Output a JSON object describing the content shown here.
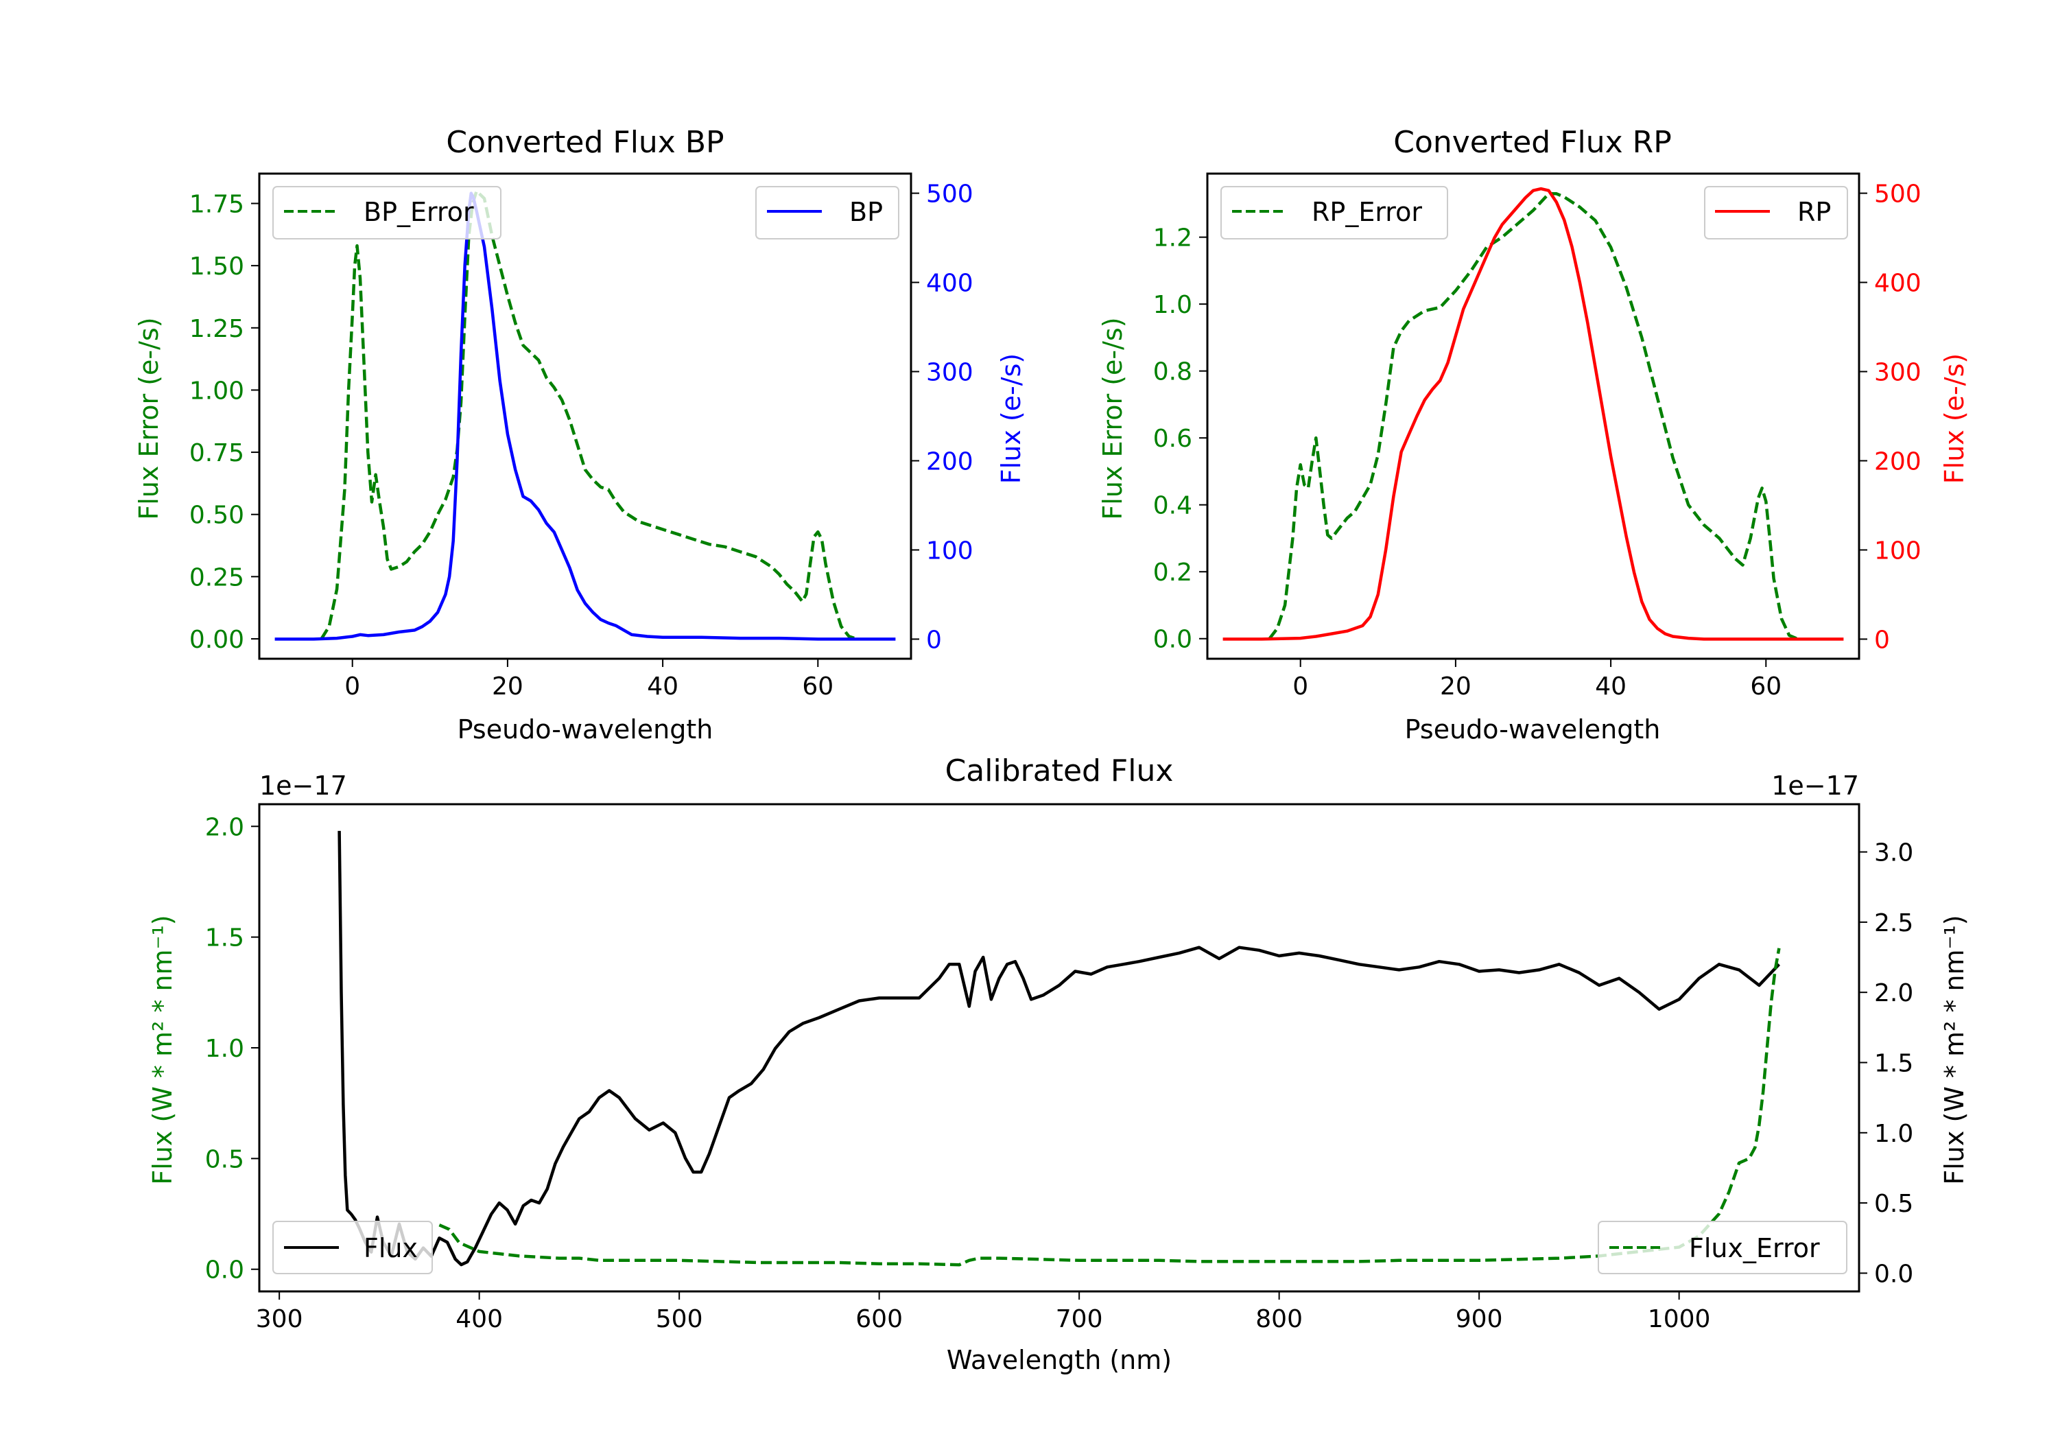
{
  "colors": {
    "green": "#008000",
    "blue": "#0000ff",
    "red": "#ff0000",
    "black": "#000000"
  },
  "chart_data": [
    {
      "id": "bp",
      "type": "line",
      "title": "Converted Flux BP",
      "xlabel": "Pseudo-wavelength",
      "ylabel_left": "Flux Error (e-/s)",
      "ylabel_right": "Flux (e-/s)",
      "xlim": [
        -12,
        72
      ],
      "ylim_left": [
        -0.08,
        1.87
      ],
      "ylim_right": [
        -22,
        522
      ],
      "xticks": [
        0,
        20,
        40,
        60
      ],
      "yticks_left": [
        "0.00",
        "0.25",
        "0.50",
        "0.75",
        "1.00",
        "1.25",
        "1.50",
        "1.75"
      ],
      "yticks_right": [
        "0",
        "100",
        "200",
        "300",
        "400",
        "500"
      ],
      "legend_left": "BP_Error",
      "legend_right": "BP",
      "series": [
        {
          "name": "BP_Error",
          "axis": "left",
          "style": "dashed",
          "color": "#008000",
          "x": [
            -4,
            -3,
            -2,
            -1,
            -0.5,
            0,
            0.3,
            0.6,
            1,
            1.5,
            2,
            2.5,
            3,
            3.5,
            4,
            4.5,
            5,
            6,
            7,
            8,
            9,
            10,
            11,
            12,
            13,
            13.5,
            14,
            14.5,
            15,
            15.5,
            16,
            17,
            18,
            19,
            20,
            21,
            22,
            23,
            24,
            25,
            26,
            27,
            28,
            29,
            30,
            31,
            32,
            33,
            34,
            35,
            36,
            37,
            38,
            40,
            42,
            44,
            46,
            48,
            50,
            52,
            54,
            55,
            56,
            57,
            58,
            58.5,
            59,
            59.5,
            60,
            60.5,
            61,
            62,
            63,
            64,
            65
          ],
          "values": [
            0.0,
            0.05,
            0.2,
            0.6,
            1.0,
            1.3,
            1.5,
            1.58,
            1.45,
            1.1,
            0.75,
            0.55,
            0.66,
            0.55,
            0.45,
            0.32,
            0.28,
            0.29,
            0.31,
            0.35,
            0.38,
            0.43,
            0.5,
            0.56,
            0.65,
            0.76,
            0.95,
            1.3,
            1.62,
            1.75,
            1.8,
            1.77,
            1.62,
            1.5,
            1.38,
            1.27,
            1.18,
            1.15,
            1.12,
            1.05,
            1.01,
            0.96,
            0.88,
            0.78,
            0.68,
            0.64,
            0.61,
            0.6,
            0.55,
            0.51,
            0.49,
            0.47,
            0.46,
            0.44,
            0.42,
            0.4,
            0.38,
            0.37,
            0.35,
            0.33,
            0.29,
            0.26,
            0.22,
            0.19,
            0.15,
            0.18,
            0.3,
            0.41,
            0.43,
            0.4,
            0.3,
            0.15,
            0.05,
            0.01,
            0.0
          ]
        },
        {
          "name": "BP",
          "axis": "right",
          "style": "solid",
          "color": "#0000ff",
          "x": [
            -10,
            -5,
            -2,
            0,
            1,
            2,
            4,
            6,
            8,
            9,
            10,
            11,
            12,
            12.5,
            13,
            13.5,
            14,
            14.5,
            15,
            15.3,
            15.6,
            16,
            17,
            18,
            19,
            20,
            21,
            22,
            23,
            24,
            25,
            26,
            27,
            28,
            29,
            30,
            31,
            32,
            33,
            34,
            35,
            36,
            38,
            40,
            45,
            50,
            55,
            60,
            65,
            70
          ],
          "values": [
            0,
            0,
            1,
            3,
            5,
            4,
            5,
            8,
            10,
            14,
            20,
            30,
            50,
            70,
            110,
            200,
            320,
            420,
            480,
            500,
            495,
            480,
            440,
            370,
            290,
            230,
            190,
            160,
            155,
            145,
            130,
            120,
            100,
            80,
            55,
            40,
            30,
            22,
            18,
            15,
            10,
            5,
            3,
            2,
            2,
            1,
            1,
            0,
            0,
            0
          ]
        }
      ]
    },
    {
      "id": "rp",
      "type": "line",
      "title": "Converted Flux RP",
      "xlabel": "Pseudo-wavelength",
      "ylabel_left": "Flux Error (e-/s)",
      "ylabel_right": "Flux (e-/s)",
      "xlim": [
        -12,
        72
      ],
      "ylim_left": [
        -0.06,
        1.39
      ],
      "ylim_right": [
        -22,
        522
      ],
      "xticks": [
        0,
        20,
        40,
        60
      ],
      "yticks_left": [
        "0.0",
        "0.2",
        "0.4",
        "0.6",
        "0.8",
        "1.0",
        "1.2"
      ],
      "yticks_right": [
        "0",
        "100",
        "200",
        "300",
        "400",
        "500"
      ],
      "legend_left": "RP_Error",
      "legend_right": "RP",
      "series": [
        {
          "name": "RP_Error",
          "axis": "left",
          "style": "dashed",
          "color": "#008000",
          "x": [
            -4,
            -3,
            -2,
            -1,
            -0.5,
            0,
            0.5,
            1,
            1.5,
            2,
            2.5,
            3,
            3.5,
            4,
            5,
            6,
            7,
            8,
            9,
            10,
            11,
            12,
            13,
            14,
            16,
            18,
            20,
            22,
            24,
            26,
            28,
            30,
            32,
            33,
            34,
            36,
            38,
            40,
            42,
            44,
            46,
            48,
            50,
            52,
            54,
            55,
            56,
            57,
            58,
            59,
            59.5,
            60,
            60.5,
            61,
            62,
            63,
            64
          ],
          "values": [
            0.0,
            0.03,
            0.1,
            0.3,
            0.45,
            0.52,
            0.46,
            0.45,
            0.53,
            0.6,
            0.5,
            0.4,
            0.31,
            0.3,
            0.33,
            0.36,
            0.38,
            0.42,
            0.46,
            0.55,
            0.7,
            0.87,
            0.92,
            0.95,
            0.98,
            0.99,
            1.04,
            1.1,
            1.17,
            1.2,
            1.24,
            1.28,
            1.33,
            1.33,
            1.32,
            1.29,
            1.25,
            1.17,
            1.05,
            0.9,
            0.72,
            0.54,
            0.4,
            0.34,
            0.3,
            0.27,
            0.24,
            0.22,
            0.3,
            0.42,
            0.45,
            0.41,
            0.3,
            0.18,
            0.06,
            0.01,
            0.0
          ]
        },
        {
          "name": "RP",
          "axis": "right",
          "style": "solid",
          "color": "#ff0000",
          "x": [
            -10,
            -5,
            0,
            2,
            4,
            6,
            8,
            9,
            10,
            11,
            12,
            13,
            14,
            15,
            16,
            17,
            18,
            19,
            20,
            21,
            22,
            23,
            24,
            25,
            26,
            27,
            28,
            29,
            30,
            31,
            32,
            33,
            34,
            35,
            36,
            37,
            38,
            39,
            40,
            41,
            42,
            43,
            44,
            45,
            46,
            47,
            48,
            50,
            52,
            55,
            60,
            65,
            70
          ],
          "values": [
            0,
            0,
            1,
            3,
            6,
            9,
            15,
            25,
            50,
            100,
            160,
            210,
            230,
            250,
            268,
            280,
            290,
            310,
            340,
            370,
            390,
            410,
            430,
            450,
            465,
            475,
            485,
            495,
            503,
            505,
            503,
            490,
            470,
            440,
            400,
            355,
            305,
            255,
            205,
            160,
            115,
            75,
            42,
            22,
            12,
            6,
            3,
            1,
            0,
            0,
            0,
            0,
            0
          ]
        }
      ]
    },
    {
      "id": "cal",
      "type": "line",
      "title": "Calibrated Flux",
      "xlabel": "Wavelength (nm)",
      "ylabel_left": "Flux (W * m² * nm⁻¹)",
      "ylabel_right": "Flux (W * m² * nm⁻¹)",
      "offset_left": "1e−17",
      "offset_right": "1e−17",
      "xlim": [
        290,
        1090
      ],
      "ylim_left": [
        -0.1,
        2.1
      ],
      "ylim_right": [
        -0.13,
        3.34
      ],
      "xticks": [
        300,
        400,
        500,
        600,
        700,
        800,
        900,
        1000
      ],
      "yticks_left": [
        "0.0",
        "0.5",
        "1.0",
        "1.5",
        "2.0"
      ],
      "yticks_right": [
        "0.0",
        "0.5",
        "1.0",
        "1.5",
        "2.0",
        "2.5",
        "3.0"
      ],
      "legend_left": "Flux",
      "legend_right": "Flux_Error",
      "series": [
        {
          "name": "Flux",
          "axis": "right",
          "style": "solid",
          "color": "#000000",
          "x": [
            330,
            331,
            332,
            333,
            334,
            336,
            338,
            340,
            343,
            346,
            349,
            352,
            356,
            360,
            364,
            368,
            372,
            376,
            380,
            384,
            388,
            391,
            394,
            398,
            402,
            406,
            410,
            414,
            418,
            422,
            426,
            430,
            434,
            438,
            442,
            446,
            450,
            455,
            460,
            465,
            470,
            478,
            485,
            492,
            498,
            503,
            507,
            511,
            515,
            520,
            525,
            530,
            536,
            542,
            548,
            555,
            562,
            570,
            580,
            590,
            600,
            610,
            620,
            630,
            635,
            640,
            645,
            648,
            652,
            656,
            660,
            664,
            668,
            672,
            676,
            682,
            690,
            698,
            706,
            714,
            722,
            730,
            740,
            750,
            760,
            770,
            780,
            790,
            800,
            810,
            820,
            830,
            840,
            850,
            860,
            870,
            880,
            890,
            900,
            910,
            920,
            930,
            940,
            950,
            960,
            970,
            980,
            990,
            1000,
            1010,
            1020,
            1030,
            1040,
            1050
          ],
          "values": [
            3.15,
            2.0,
            1.2,
            0.7,
            0.45,
            0.42,
            0.38,
            0.32,
            0.22,
            0.15,
            0.4,
            0.22,
            0.12,
            0.35,
            0.15,
            0.1,
            0.18,
            0.12,
            0.25,
            0.22,
            0.1,
            0.06,
            0.08,
            0.18,
            0.3,
            0.42,
            0.5,
            0.45,
            0.35,
            0.48,
            0.52,
            0.5,
            0.6,
            0.78,
            0.9,
            1.0,
            1.1,
            1.15,
            1.25,
            1.3,
            1.25,
            1.1,
            1.02,
            1.07,
            1.0,
            0.82,
            0.72,
            0.72,
            0.85,
            1.05,
            1.25,
            1.3,
            1.35,
            1.45,
            1.6,
            1.72,
            1.78,
            1.82,
            1.88,
            1.94,
            1.96,
            1.96,
            1.96,
            2.1,
            2.2,
            2.2,
            1.9,
            2.15,
            2.25,
            1.95,
            2.1,
            2.2,
            2.22,
            2.1,
            1.95,
            1.98,
            2.05,
            2.15,
            2.13,
            2.18,
            2.2,
            2.22,
            2.25,
            2.28,
            2.32,
            2.24,
            2.32,
            2.3,
            2.26,
            2.28,
            2.26,
            2.23,
            2.2,
            2.18,
            2.16,
            2.18,
            2.22,
            2.2,
            2.15,
            2.16,
            2.14,
            2.16,
            2.2,
            2.14,
            2.05,
            2.1,
            2.0,
            1.88,
            1.95,
            2.1,
            2.2,
            2.16,
            2.05,
            2.2
          ]
        },
        {
          "name": "Flux_Error",
          "axis": "left",
          "style": "dashed",
          "color": "#008000",
          "x": [
            380,
            385,
            390,
            400,
            410,
            420,
            430,
            440,
            450,
            460,
            480,
            500,
            520,
            540,
            560,
            580,
            600,
            620,
            640,
            645,
            650,
            660,
            680,
            700,
            720,
            740,
            760,
            780,
            800,
            820,
            840,
            860,
            880,
            900,
            920,
            940,
            960,
            980,
            1000,
            1010,
            1020,
            1025,
            1030,
            1035,
            1038,
            1040,
            1042,
            1044,
            1046,
            1048,
            1050
          ],
          "values": [
            0.2,
            0.18,
            0.12,
            0.08,
            0.07,
            0.06,
            0.055,
            0.05,
            0.05,
            0.04,
            0.04,
            0.04,
            0.035,
            0.03,
            0.03,
            0.03,
            0.025,
            0.025,
            0.02,
            0.04,
            0.05,
            0.05,
            0.045,
            0.04,
            0.04,
            0.04,
            0.035,
            0.035,
            0.035,
            0.035,
            0.035,
            0.04,
            0.04,
            0.04,
            0.045,
            0.05,
            0.06,
            0.08,
            0.1,
            0.15,
            0.25,
            0.35,
            0.48,
            0.5,
            0.55,
            0.65,
            0.8,
            1.0,
            1.2,
            1.35,
            1.45
          ]
        }
      ]
    }
  ]
}
